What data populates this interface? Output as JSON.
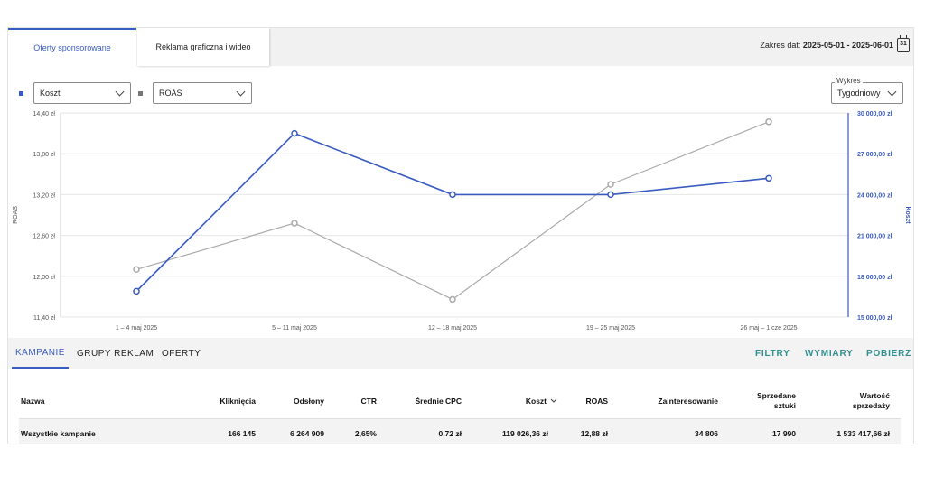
{
  "tabs": [
    {
      "label": "Oferty sponsorowane",
      "active": true
    },
    {
      "label": "Reklama graficzna i wideo",
      "active": false
    }
  ],
  "date_range": {
    "label": "Zakres dat:",
    "value": "2025-05-01 - 2025-06-01",
    "calendar_day": "31"
  },
  "selectors": {
    "metric1": "Koszt",
    "metric2": "ROAS",
    "chart_label": "Wykres",
    "chart_value": "Tygodniowy"
  },
  "colors": {
    "koszt": "#3a5bbf",
    "roas": "#aaaaaa",
    "accent": "#3a5bbf",
    "action": "#2f8f8f"
  },
  "chart_data": {
    "type": "line",
    "categories": [
      "1 – 4 maj 2025",
      "5 – 11 maj 2025",
      "12 – 18 maj 2025",
      "19 – 25 maj 2025",
      "26 maj – 1 cze 2025"
    ],
    "left_axis": {
      "label": "ROAS",
      "min": 11.4,
      "max": 14.4,
      "ticks": [
        "14,40 zł",
        "13,80 zł",
        "13,20 zł",
        "12,60 zł",
        "12,00 zł",
        "11,40 zł"
      ]
    },
    "right_axis": {
      "label": "Koszt",
      "min": 15000,
      "max": 30000,
      "ticks": [
        "30 000,00 zł",
        "27 000,00 zł",
        "24 000,00 zł",
        "21 000,00 zł",
        "18 000,00 zł",
        "15 000,00 zł"
      ]
    },
    "series": [
      {
        "name": "ROAS",
        "axis": "left",
        "values": [
          12.1,
          12.78,
          11.66,
          13.35,
          14.27
        ]
      },
      {
        "name": "Koszt",
        "axis": "right",
        "values": [
          16900,
          28500,
          24000,
          24000,
          25200
        ]
      }
    ],
    "grid": true
  },
  "subtabs": [
    "KAMPANIE",
    "GRUPY REKLAM",
    "OFERTY"
  ],
  "actions": [
    "FILTRY",
    "WYMIARY",
    "POBIERZ"
  ],
  "table": {
    "headers": {
      "nazwa": "Nazwa",
      "klikniecia": "Kliknięcia",
      "odslony": "Odsłony",
      "ctr": "CTR",
      "cpc": "Średnie CPC",
      "koszt": "Koszt",
      "roas": "ROAS",
      "zainteresowanie": "Zainteresowanie",
      "sztuki1": "Sprzedane",
      "sztuki2": "sztuki",
      "wartosc1": "Wartość",
      "wartosc2": "sprzedaży"
    },
    "rows": [
      {
        "nazwa": "Wszystkie kampanie",
        "klikniecia": "166 145",
        "odslony": "6 264 909",
        "ctr": "2,65%",
        "cpc": "0,72 zł",
        "koszt": "119 026,36 zł",
        "roas": "12,88 zł",
        "zainteresowanie": "34 806",
        "sztuki": "17 990",
        "wartosc": "1 533 417,66 zł"
      }
    ]
  }
}
